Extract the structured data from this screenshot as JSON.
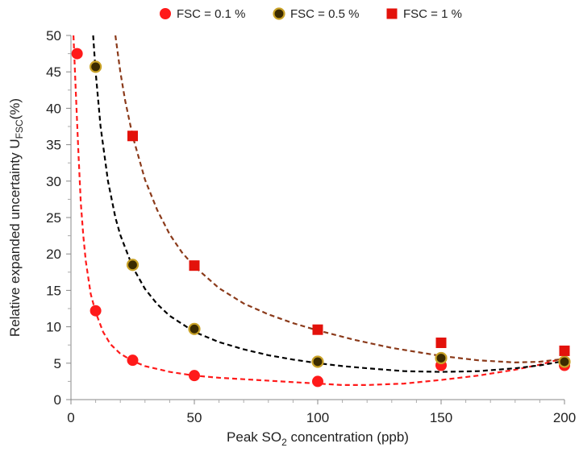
{
  "chart_data": {
    "type": "scatter",
    "xlabel": {
      "pre": "Peak SO",
      "sub": "2",
      "post": " concentration (ppb)"
    },
    "ylabel": {
      "pre": "Relative expanded uncertainty U",
      "sub": "FSC",
      "post": "(%)"
    },
    "xlim": [
      0,
      200
    ],
    "ylim": [
      0,
      50
    ],
    "x_ticks": [
      0,
      50,
      100,
      150,
      200
    ],
    "y_ticks": [
      0,
      5,
      10,
      15,
      20,
      25,
      30,
      35,
      40,
      45,
      50
    ],
    "grid": false,
    "legend_position": "top",
    "series": [
      {
        "name": "FSC = 0.1 %",
        "marker": "circle",
        "color": "#ff1a1a",
        "stroke": "#ff1a1a",
        "trend_color": "#ff1a1a",
        "points": [
          [
            2.5,
            47.5
          ],
          [
            10,
            12.2
          ],
          [
            25,
            5.4
          ],
          [
            50,
            3.3
          ],
          [
            100,
            2.5
          ],
          [
            150,
            4.7
          ],
          [
            200,
            4.7
          ]
        ],
        "trend": [
          [
            1,
            50
          ],
          [
            2,
            42
          ],
          [
            3,
            34
          ],
          [
            4,
            27
          ],
          [
            5,
            22.5
          ],
          [
            6,
            19
          ],
          [
            8,
            14.5
          ],
          [
            10,
            12
          ],
          [
            13,
            9.3
          ],
          [
            16,
            7.6
          ],
          [
            20,
            6.3
          ],
          [
            25,
            5.3
          ],
          [
            30,
            4.6
          ],
          [
            40,
            3.8
          ],
          [
            50,
            3.3
          ],
          [
            60,
            3.0
          ],
          [
            75,
            2.7
          ],
          [
            90,
            2.4
          ],
          [
            100,
            2.2
          ],
          [
            110,
            2.0
          ],
          [
            120,
            2.0
          ],
          [
            135,
            2.2
          ],
          [
            150,
            2.7
          ],
          [
            165,
            3.3
          ],
          [
            180,
            4.1
          ],
          [
            190,
            4.8
          ],
          [
            200,
            5.7
          ]
        ]
      },
      {
        "name": "FSC = 0.5 %",
        "marker": "circle",
        "color": "#3b2b00",
        "stroke": "#c9a227",
        "trend_color": "#000000",
        "points": [
          [
            10,
            45.7
          ],
          [
            25,
            18.5
          ],
          [
            50,
            9.7
          ],
          [
            100,
            5.2
          ],
          [
            150,
            5.7
          ],
          [
            200,
            5.2
          ]
        ],
        "trend": [
          [
            9,
            50
          ],
          [
            10,
            45
          ],
          [
            12,
            37.5
          ],
          [
            15,
            30
          ],
          [
            18,
            25
          ],
          [
            20,
            22.6
          ],
          [
            25,
            18.2
          ],
          [
            30,
            15.2
          ],
          [
            35,
            13.1
          ],
          [
            40,
            11.5
          ],
          [
            50,
            9.3
          ],
          [
            60,
            7.9
          ],
          [
            70,
            6.9
          ],
          [
            80,
            6.1
          ],
          [
            90,
            5.5
          ],
          [
            100,
            5.0
          ],
          [
            110,
            4.6
          ],
          [
            120,
            4.3
          ],
          [
            135,
            3.9
          ],
          [
            150,
            3.8
          ],
          [
            165,
            3.9
          ],
          [
            180,
            4.3
          ],
          [
            190,
            4.7
          ],
          [
            200,
            5.3
          ]
        ]
      },
      {
        "name": "FSC = 1 %",
        "marker": "square",
        "color": "#e3120b",
        "stroke": "#e3120b",
        "trend_color": "#8b3a1a",
        "points": [
          [
            25,
            36.2
          ],
          [
            50,
            18.4
          ],
          [
            100,
            9.6
          ],
          [
            150,
            7.8
          ],
          [
            200,
            6.7
          ]
        ],
        "trend": [
          [
            18,
            50
          ],
          [
            20,
            45
          ],
          [
            22,
            41
          ],
          [
            25,
            36.2
          ],
          [
            30,
            30.2
          ],
          [
            35,
            26
          ],
          [
            40,
            22.7
          ],
          [
            45,
            20.2
          ],
          [
            50,
            18.3
          ],
          [
            60,
            15.3
          ],
          [
            70,
            13.2
          ],
          [
            80,
            11.7
          ],
          [
            90,
            10.5
          ],
          [
            100,
            9.5
          ],
          [
            115,
            8.2
          ],
          [
            130,
            7.1
          ],
          [
            150,
            6.0
          ],
          [
            165,
            5.4
          ],
          [
            180,
            5.1
          ],
          [
            190,
            5.2
          ],
          [
            200,
            5.6
          ]
        ]
      }
    ]
  }
}
